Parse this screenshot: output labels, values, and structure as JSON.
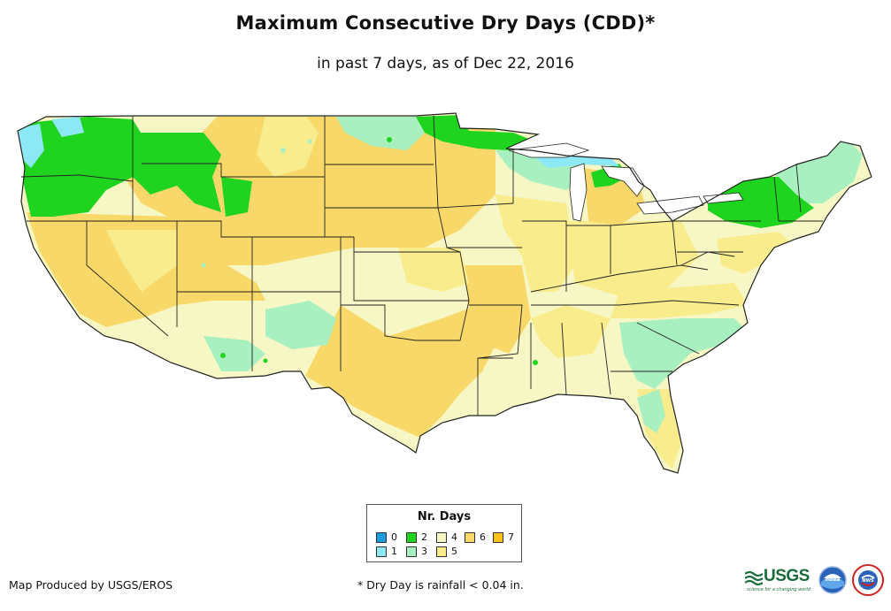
{
  "title": "Maximum Consecutive Dry Days (CDD)*",
  "subtitle": "in past 7 days, as of Dec 22, 2016",
  "legend": {
    "title": "Nr. Days",
    "items": [
      {
        "value": "0",
        "color": "#1a9ce0"
      },
      {
        "value": "1",
        "color": "#8de8f5"
      },
      {
        "value": "2",
        "color": "#1fd41f"
      },
      {
        "value": "3",
        "color": "#a9f0c0"
      },
      {
        "value": "4",
        "color": "#f6f7c4"
      },
      {
        "value": "5",
        "color": "#f9ec8c"
      },
      {
        "value": "6",
        "color": "#f8d868"
      },
      {
        "value": "7",
        "color": "#f7c21a"
      }
    ]
  },
  "footer": {
    "credit": "Map Produced by USGS/EROS",
    "note": "* Dry Day is rainfall < 0.04 in."
  },
  "logos": {
    "usgs_word": "USGS",
    "usgs_tagline": "science for a changing world",
    "noaa": "noaa",
    "nws": "NWS"
  },
  "colors": {
    "state_border": "#222222",
    "water": "#ffffff",
    "usgs_green": "#1a6d3b"
  },
  "icons": [
    "usgs-logo-icon",
    "noaa-logo-icon",
    "nws-logo-icon"
  ]
}
